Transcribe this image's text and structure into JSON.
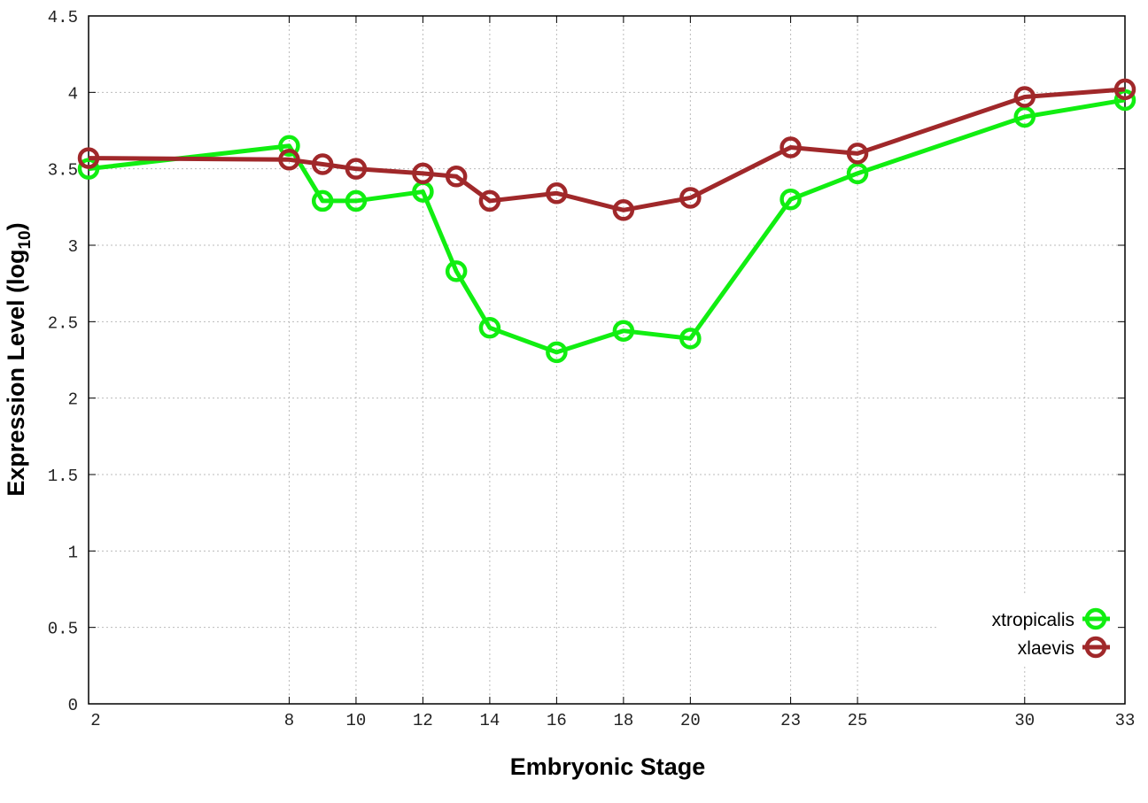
{
  "chart_data": {
    "type": "line",
    "xlabel": "Embryonic Stage",
    "ylabel": "Expression Level (log",
    "ylabel_sub": "10",
    "ylabel_end": ")",
    "xlim": [
      2,
      33
    ],
    "ylim": [
      0,
      4.5
    ],
    "x": [
      2,
      8,
      9,
      10,
      12,
      13,
      14,
      16,
      18,
      20,
      23,
      25,
      30,
      33
    ],
    "xtick_labels": [
      "2",
      "8",
      "10",
      "12",
      "14",
      "16",
      "18",
      "20",
      "23",
      "25",
      "30",
      "33"
    ],
    "xtick_values": [
      2,
      8,
      10,
      12,
      14,
      16,
      18,
      20,
      23,
      25,
      30,
      33
    ],
    "ytick_labels": [
      "0",
      "0.5",
      "1",
      "1.5",
      "2",
      "2.5",
      "3",
      "3.5",
      "4",
      "4.5"
    ],
    "grid": true,
    "legend_placement": "bottom-right",
    "series": [
      {
        "name": "xtropicalis",
        "color": "#11ee11",
        "values": [
          3.5,
          3.65,
          3.29,
          3.29,
          3.35,
          2.83,
          2.46,
          2.3,
          2.44,
          2.39,
          3.3,
          3.47,
          3.84,
          3.95
        ]
      },
      {
        "name": "xlaevis",
        "color": "#a0282a",
        "values": [
          3.57,
          3.56,
          3.53,
          3.5,
          3.47,
          3.45,
          3.29,
          3.34,
          3.23,
          3.31,
          3.64,
          3.6,
          3.97,
          4.02
        ]
      }
    ]
  }
}
